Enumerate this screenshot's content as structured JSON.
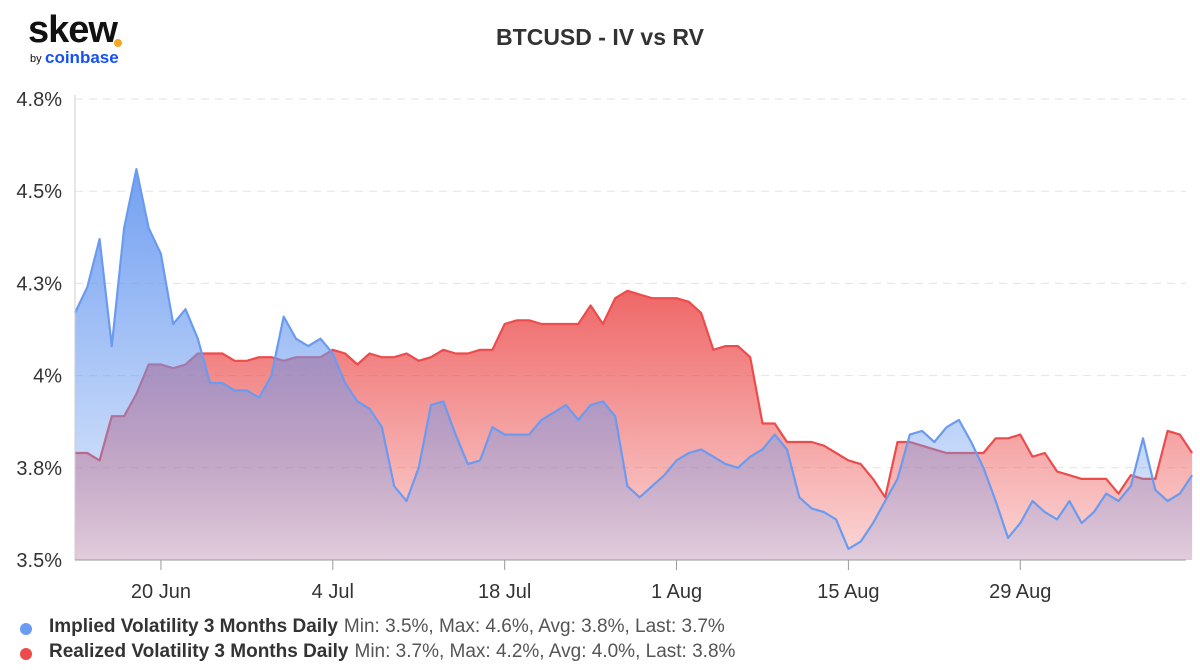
{
  "logo": {
    "word": "skew",
    "by": "by",
    "brand": "coinbase"
  },
  "colors": {
    "iv": "#6b9bf0",
    "rv": "#ec4c4c"
  },
  "legend": [
    {
      "name": "Implied Volatility 3 Months Daily",
      "stats": "Min: 3.5%, Max: 4.6%, Avg: 3.8%, Last: 3.7%"
    },
    {
      "name": "Realized Volatility 3 Months Daily",
      "stats": "Min: 3.7%, Max: 4.2%, Avg: 4.0%, Last: 3.8%"
    }
  ],
  "chart_data": {
    "type": "area",
    "title": "BTCUSD - IV vs RV",
    "xlabel": "",
    "ylabel": "",
    "x_tick_labels": [
      "20 Jun",
      "4 Jul",
      "18 Jul",
      "1 Aug",
      "15 Aug",
      "29 Aug"
    ],
    "x_tick_days": [
      7,
      21,
      35,
      49,
      63,
      77
    ],
    "y_tick_values": [
      3.5,
      3.75,
      4.0,
      4.25,
      4.5,
      4.75
    ],
    "y_tick_labels": [
      "3.5%",
      "3.8%",
      "4%",
      "4.3%",
      "4.5%",
      "4.8%"
    ],
    "xlim": [
      0,
      90.5
    ],
    "ylim": [
      3.5,
      4.75
    ],
    "grid": true,
    "legend_position": "bottom-left",
    "series": [
      {
        "name": "Implied Volatility 3 Months Daily",
        "color": "#6b9bf0",
        "values": [
          4.17,
          4.24,
          4.37,
          4.08,
          4.4,
          4.56,
          4.4,
          4.33,
          4.14,
          4.18,
          4.1,
          3.98,
          3.98,
          3.96,
          3.96,
          3.94,
          4.0,
          4.16,
          4.1,
          4.08,
          4.1,
          4.06,
          3.98,
          3.93,
          3.91,
          3.86,
          3.7,
          3.66,
          3.75,
          3.92,
          3.93,
          3.84,
          3.76,
          3.77,
          3.86,
          3.84,
          3.84,
          3.84,
          3.88,
          3.9,
          3.92,
          3.88,
          3.92,
          3.93,
          3.89,
          3.7,
          3.67,
          3.7,
          3.73,
          3.77,
          3.79,
          3.8,
          3.78,
          3.76,
          3.75,
          3.78,
          3.8,
          3.84,
          3.8,
          3.67,
          3.64,
          3.63,
          3.61,
          3.53,
          3.55,
          3.6,
          3.66,
          3.72,
          3.84,
          3.85,
          3.82,
          3.86,
          3.88,
          3.82,
          3.75,
          3.66,
          3.56,
          3.6,
          3.66,
          3.63,
          3.61,
          3.66,
          3.6,
          3.63,
          3.68,
          3.66,
          3.7,
          3.83,
          3.69,
          3.66,
          3.68,
          3.73
        ]
      },
      {
        "name": "Realized Volatility 3 Months Daily",
        "color": "#ec4c4c",
        "values": [
          3.79,
          3.79,
          3.77,
          3.89,
          3.89,
          3.95,
          4.03,
          4.03,
          4.02,
          4.03,
          4.06,
          4.06,
          4.06,
          4.04,
          4.04,
          4.05,
          4.05,
          4.04,
          4.05,
          4.05,
          4.05,
          4.07,
          4.06,
          4.03,
          4.06,
          4.05,
          4.05,
          4.06,
          4.04,
          4.05,
          4.07,
          4.06,
          4.06,
          4.07,
          4.07,
          4.14,
          4.15,
          4.15,
          4.14,
          4.14,
          4.14,
          4.14,
          4.19,
          4.14,
          4.21,
          4.23,
          4.22,
          4.21,
          4.21,
          4.21,
          4.2,
          4.17,
          4.07,
          4.08,
          4.08,
          4.05,
          3.87,
          3.87,
          3.82,
          3.82,
          3.82,
          3.81,
          3.79,
          3.77,
          3.76,
          3.72,
          3.67,
          3.82,
          3.82,
          3.81,
          3.8,
          3.79,
          3.79,
          3.79,
          3.79,
          3.83,
          3.83,
          3.84,
          3.78,
          3.79,
          3.74,
          3.73,
          3.72,
          3.72,
          3.72,
          3.68,
          3.73,
          3.72,
          3.72,
          3.85,
          3.84,
          3.79
        ]
      }
    ]
  }
}
